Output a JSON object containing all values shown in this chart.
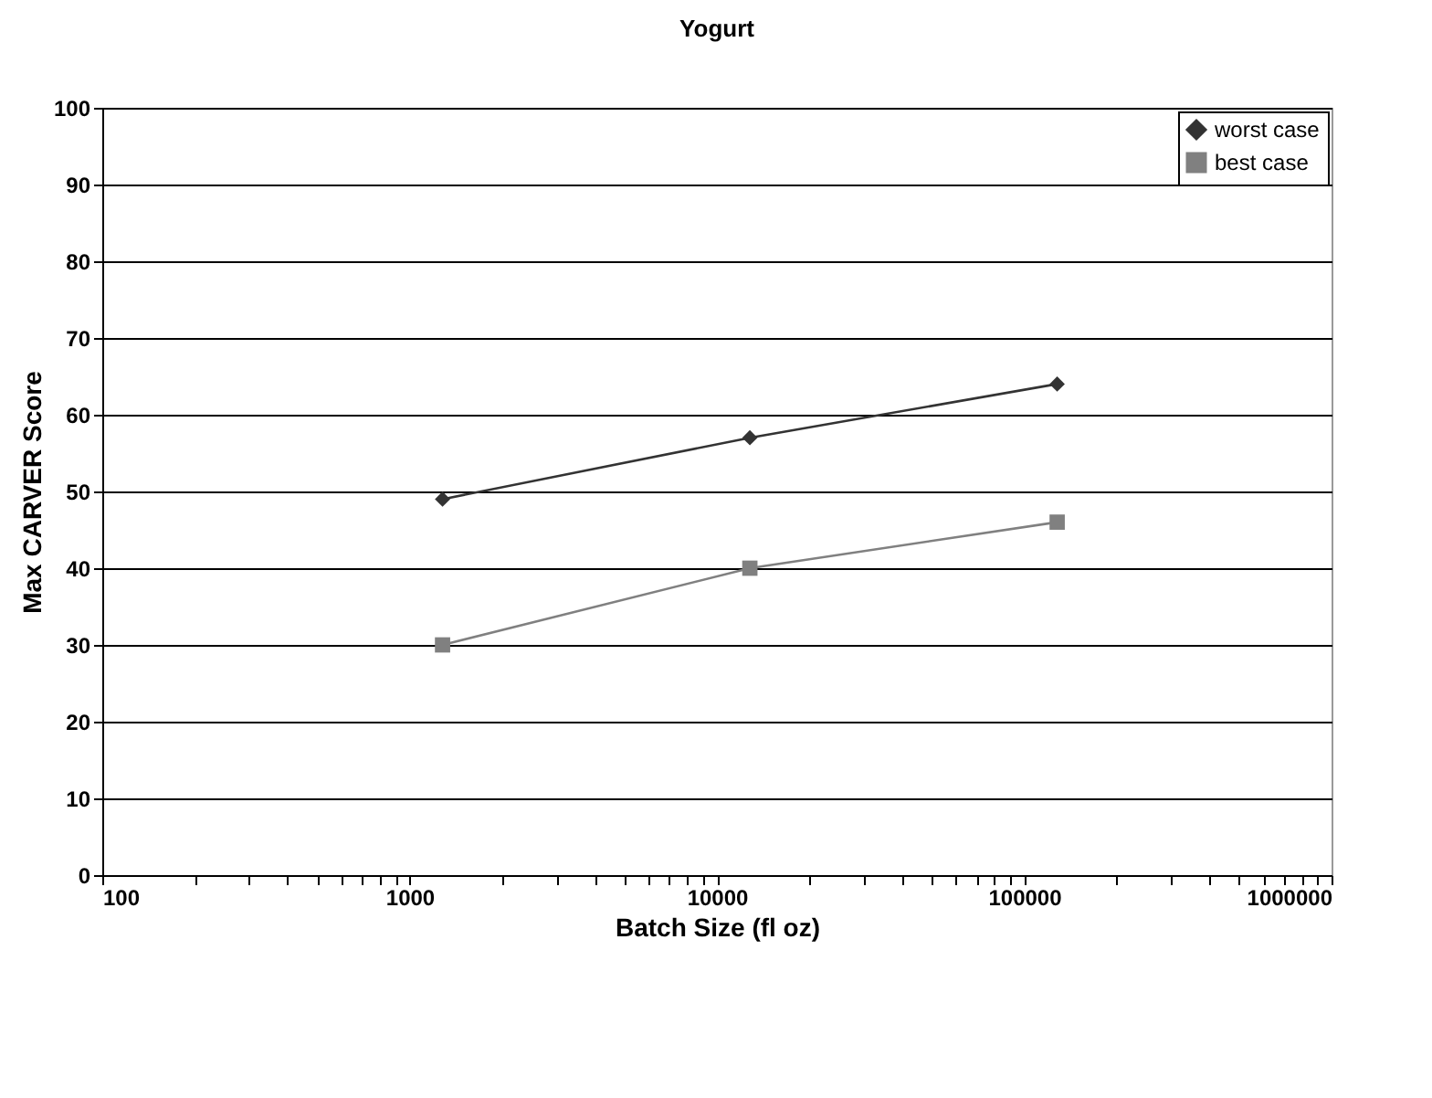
{
  "chart_data": {
    "type": "line",
    "title": "Yogurt",
    "xlabel": "Batch Size (fl oz)",
    "ylabel": "Max CARVER Score",
    "log": "x",
    "x": [
      1280,
      12800,
      128000
    ],
    "series": [
      {
        "name": "worst case",
        "color": "#333333",
        "marker": "diamond",
        "values": [
          49,
          57,
          64
        ]
      },
      {
        "name": "best case",
        "color": "#808080",
        "marker": "square",
        "values": [
          30,
          40,
          46
        ]
      }
    ],
    "xlim": [
      100,
      1000000
    ],
    "xticks": [
      100,
      {
        "value": 200,
        "label": null
      },
      {
        "value": 300,
        "label": null
      },
      {
        "value": 400,
        "label": null
      },
      {
        "value": 500,
        "label": null
      },
      {
        "value": 600,
        "label": null
      },
      {
        "value": 700,
        "label": null
      },
      {
        "value": 800,
        "label": null
      },
      {
        "value": 900,
        "label": null
      },
      1000,
      {
        "value": 2000,
        "label": null
      },
      {
        "value": 3000,
        "label": null
      },
      {
        "value": 4000,
        "label": null
      },
      {
        "value": 5000,
        "label": null
      },
      {
        "value": 6000,
        "label": null
      },
      {
        "value": 7000,
        "label": null
      },
      {
        "value": 8000,
        "label": null
      },
      {
        "value": 9000,
        "label": null
      },
      10000,
      {
        "value": 20000,
        "label": null
      },
      {
        "value": 30000,
        "label": null
      },
      {
        "value": 40000,
        "label": null
      },
      {
        "value": 50000,
        "label": null
      },
      {
        "value": 60000,
        "label": null
      },
      {
        "value": 70000,
        "label": null
      },
      {
        "value": 80000,
        "label": null
      },
      {
        "value": 90000,
        "label": null
      },
      100000,
      {
        "value": 200000,
        "label": null
      },
      {
        "value": 300000,
        "label": null
      },
      {
        "value": 400000,
        "label": null
      },
      {
        "value": 500000,
        "label": null
      },
      {
        "value": 600000,
        "label": null
      },
      {
        "value": 700000,
        "label": null
      },
      {
        "value": 800000,
        "label": null
      },
      {
        "value": 900000,
        "label": null
      },
      1000000
    ],
    "ylim": [
      0,
      100
    ],
    "yticks": [
      0,
      10,
      20,
      30,
      40,
      50,
      60,
      70,
      80,
      90,
      100
    ],
    "grid": "y",
    "legend": "top right"
  }
}
